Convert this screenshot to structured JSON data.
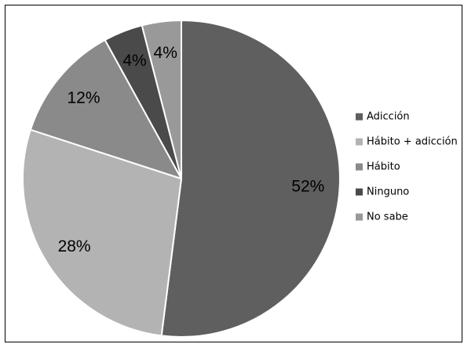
{
  "chart_data": {
    "type": "pie",
    "categories": [
      "Adicción",
      "Hábito + adicción",
      "Hábito",
      "Ninguno",
      "No sabe"
    ],
    "values": [
      52,
      28,
      12,
      4,
      4
    ],
    "labels": [
      "52%",
      "28%",
      "12%",
      "4%",
      "4%"
    ],
    "colors": [
      "#5f5f5f",
      "#b3b3b3",
      "#8a8a8a",
      "#4a4a4a",
      "#999999"
    ],
    "legend": "right"
  }
}
